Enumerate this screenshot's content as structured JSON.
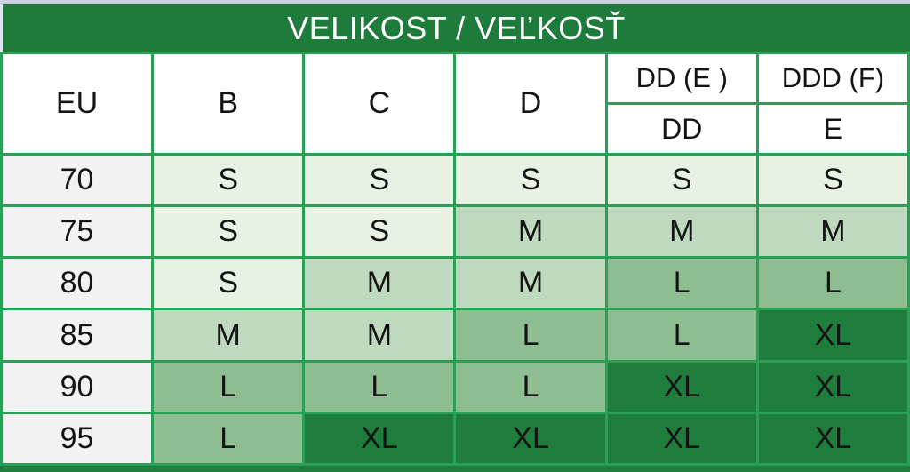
{
  "title": {
    "text": "VELIKOST / VEĽKOSŤ"
  },
  "colors": {
    "title_bar_green": "#1e7b3b",
    "grid_border_green": "#2aa054",
    "shade_s_light_green": "#e7f1e4",
    "shade_m_medium_light_green": "#bed9bd",
    "shade_l_medium_green": "#8ebd92",
    "shade_xl_dark_green": "#1e7c3c",
    "eu_column_gray": "#f2f2f2",
    "header_white": "#ffffff",
    "top_strip_gray": "#c9d3e0",
    "dark_text": "#141414",
    "light_text": "#fafaf2"
  },
  "table": {
    "columns": [
      "EU",
      "B",
      "C",
      "D"
    ],
    "split_columns": [
      {
        "top": "DD (E )",
        "bottom": "DD"
      },
      {
        "top": "DDD (F)",
        "bottom": "E"
      }
    ],
    "rows": [
      {
        "eu": "70",
        "sizes": [
          {
            "label": "S",
            "shade": "s"
          },
          {
            "label": "S",
            "shade": "s"
          },
          {
            "label": "S",
            "shade": "s"
          },
          {
            "label": "S",
            "shade": "s"
          },
          {
            "label": "S",
            "shade": "s"
          }
        ]
      },
      {
        "eu": "75",
        "sizes": [
          {
            "label": "S",
            "shade": "s"
          },
          {
            "label": "S",
            "shade": "s"
          },
          {
            "label": "M",
            "shade": "m"
          },
          {
            "label": "M",
            "shade": "m"
          },
          {
            "label": "M",
            "shade": "m"
          }
        ]
      },
      {
        "eu": "80",
        "sizes": [
          {
            "label": "S",
            "shade": "s"
          },
          {
            "label": "M",
            "shade": "m"
          },
          {
            "label": "M",
            "shade": "m"
          },
          {
            "label": "L",
            "shade": "l"
          },
          {
            "label": "L",
            "shade": "l"
          }
        ]
      },
      {
        "eu": "85",
        "sizes": [
          {
            "label": "M",
            "shade": "m"
          },
          {
            "label": "M",
            "shade": "m"
          },
          {
            "label": "L",
            "shade": "l"
          },
          {
            "label": "L",
            "shade": "l"
          },
          {
            "label": "XL",
            "shade": "xl"
          }
        ]
      },
      {
        "eu": "90",
        "sizes": [
          {
            "label": "L",
            "shade": "l"
          },
          {
            "label": "L",
            "shade": "l"
          },
          {
            "label": "L",
            "shade": "l"
          },
          {
            "label": "XL",
            "shade": "xl"
          },
          {
            "label": "XL",
            "shade": "xl"
          }
        ]
      },
      {
        "eu": "95",
        "sizes": [
          {
            "label": "L",
            "shade": "l"
          },
          {
            "label": "XL",
            "shade": "xl"
          },
          {
            "label": "XL",
            "shade": "xl"
          },
          {
            "label": "XL",
            "shade": "xl"
          },
          {
            "label": "XL",
            "shade": "xl"
          }
        ]
      }
    ]
  }
}
